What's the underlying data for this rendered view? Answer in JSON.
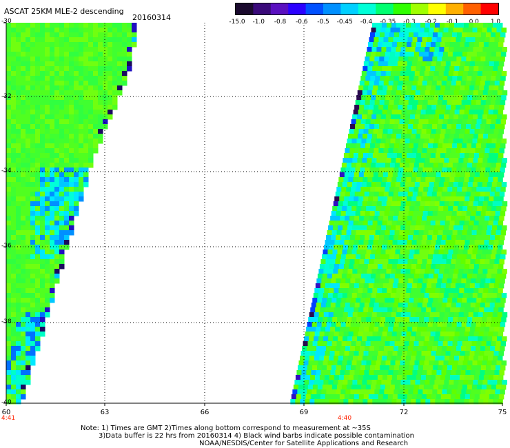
{
  "header": {
    "title": "ASCAT 25KM MLE-2 descending",
    "date": "20160314"
  },
  "colorbar": {
    "labels": [
      "-15.0",
      "-1.0",
      "-0.8",
      "-0.6",
      "-0.5",
      "-0.45",
      "-0.4",
      "-0.35",
      "-0.3",
      "-0.2",
      "-0.1",
      "0.0",
      "1.0"
    ],
    "colors": [
      "#1a0a2e",
      "#3a0a7a",
      "#5a10c0",
      "#2b00ff",
      "#0050ff",
      "#0090ff",
      "#00d0ff",
      "#00ffd8",
      "#00ff70",
      "#30ff00",
      "#a0ff00",
      "#ffff00",
      "#ffb000",
      "#ff6000",
      "#ff0000"
    ]
  },
  "map": {
    "lat_labels": [
      "-30",
      "-32",
      "-34",
      "-36",
      "-38",
      "-40"
    ],
    "lon_labels": [
      "60",
      "63",
      "66",
      "69",
      "72",
      "75"
    ],
    "lat_range": [
      -40,
      -30
    ],
    "lon_range": [
      60,
      75
    ],
    "times": [
      {
        "label": "4:41",
        "lon": 60
      },
      {
        "label": "4:40",
        "lon": 70.2
      }
    ]
  },
  "notes": {
    "line1": "Note: 1) Times are GMT 2)Times along bottom correspond to measurement at ~35S",
    "line2": "3)Data buffer is 22 hrs from 20160314 4) Black wind barbs indicate possible contamination",
    "line3": "NOAA/NESDIS/Center for Satellite Applications and Research"
  }
}
